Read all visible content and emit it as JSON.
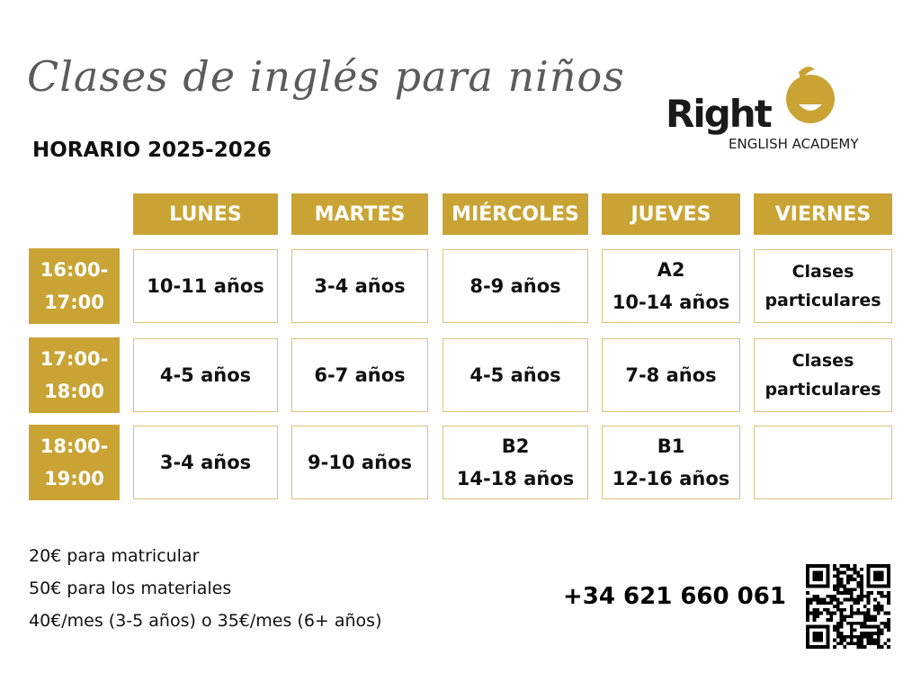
{
  "title": "Clases de inglés para niños",
  "subtitle": "HORARIO 2025-2026",
  "logo": {
    "word": "Right",
    "sub": "ENGLISH ACADEMY",
    "accent": "#c9a435"
  },
  "days": [
    "LUNES",
    "MARTES",
    "MIÉRCOLES",
    "JUEVES",
    "VIERNES"
  ],
  "rows": [
    {
      "time_start": "16:00-",
      "time_end": "17:00",
      "cells": [
        [
          "10-11 años"
        ],
        [
          "3-4 años"
        ],
        [
          "8-9 años"
        ],
        [
          "A2",
          "10-14 años"
        ],
        [
          "Clases",
          "particulares"
        ]
      ]
    },
    {
      "time_start": "17:00-",
      "time_end": "18:00",
      "cells": [
        [
          "4-5 años"
        ],
        [
          "6-7 años"
        ],
        [
          "4-5 años"
        ],
        [
          "7-8 años"
        ],
        [
          "Clases",
          "particulares"
        ]
      ]
    },
    {
      "time_start": "18:00-",
      "time_end": "19:00",
      "cells": [
        [
          "3-4 años"
        ],
        [
          "9-10 años"
        ],
        [
          "B2",
          "14-18 años"
        ],
        [
          "B1",
          "12-16 años"
        ],
        []
      ]
    }
  ],
  "fees": [
    "20€ para matricular",
    "50€ para los materiales",
    "40€/mes (3-5 años) o 35€/mes (6+ años)"
  ],
  "phone": "+34 621 660 061",
  "colors": {
    "gold": "#c9a435",
    "cell_border": "#d8c27a",
    "title_gray": "#5b5b5b"
  },
  "qr_icon": "qr-code-icon"
}
